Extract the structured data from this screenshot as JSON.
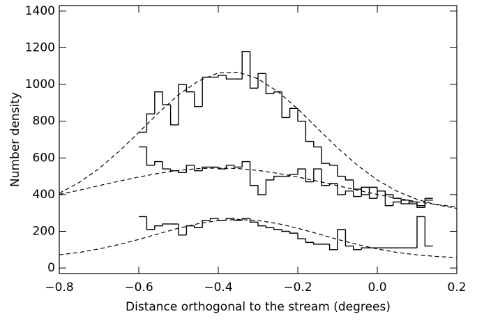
{
  "chart_data": {
    "type": "histogram",
    "xlabel": "Distance orthogonal to the stream (degrees)",
    "ylabel": "Number density",
    "xlim": [
      -0.8,
      0.2
    ],
    "ylim": [
      -30,
      1430
    ],
    "xticks": [
      {
        "value": -0.8,
        "label": "−0.8"
      },
      {
        "value": -0.6,
        "label": "−0.6"
      },
      {
        "value": -0.4,
        "label": "−0.4"
      },
      {
        "value": -0.2,
        "label": "−0.2"
      },
      {
        "value": 0,
        "label": "0.0"
      },
      0.2
    ],
    "yticks": [
      0,
      200,
      400,
      600,
      800,
      1000,
      1200,
      1400
    ],
    "color": "#000000",
    "bins": [
      -0.6,
      -0.58,
      -0.56,
      -0.54,
      -0.52,
      -0.5,
      -0.48,
      -0.46,
      -0.44,
      -0.42,
      -0.4,
      -0.38,
      -0.36,
      -0.34,
      -0.32,
      -0.3,
      -0.28,
      -0.26,
      -0.24,
      -0.22,
      -0.2,
      -0.18,
      -0.16,
      -0.14,
      -0.12,
      -0.1,
      -0.08,
      -0.06,
      -0.04,
      -0.02,
      0,
      0.02,
      0.04,
      0.06,
      0.08,
      0.1,
      0.12,
      0.14
    ],
    "series": [
      {
        "values": [
          740,
          840,
          960,
          890,
          780,
          1000,
          960,
          880,
          1040,
          1040,
          1050,
          1030,
          1030,
          1180,
          980,
          1060,
          950,
          960,
          820,
          870,
          800,
          690,
          660,
          570,
          560,
          500,
          480,
          430,
          400,
          440,
          420,
          340,
          360,
          370,
          350,
          340,
          380
        ]
      },
      {
        "values": [
          660,
          560,
          580,
          540,
          530,
          520,
          560,
          530,
          550,
          550,
          540,
          560,
          550,
          580,
          450,
          400,
          480,
          500,
          500,
          510,
          540,
          470,
          540,
          450,
          460,
          400,
          420,
          390,
          440,
          380,
          420,
          400,
          380,
          350,
          360,
          330,
          370
        ]
      },
      {
        "values": [
          280,
          210,
          230,
          240,
          240,
          180,
          230,
          220,
          260,
          270,
          260,
          270,
          260,
          270,
          250,
          230,
          220,
          210,
          200,
          190,
          160,
          140,
          130,
          130,
          100,
          210,
          120,
          100,
          110,
          110,
          110,
          110,
          110,
          110,
          110,
          280,
          120
        ]
      }
    ],
    "fit_x": [
      -0.8,
      -0.75,
      -0.7,
      -0.65,
      -0.6,
      -0.55,
      -0.5,
      -0.45,
      -0.4,
      -0.35,
      -0.3,
      -0.25,
      -0.2,
      -0.15,
      -0.1,
      -0.05,
      0,
      0.05,
      0.1,
      0.15,
      0.2
    ],
    "fits": [
      {
        "values": [
          408,
          466,
          542,
          635,
          739,
          846,
          944,
          1019,
          1063,
          1067,
          1031,
          961,
          867,
          760,
          655,
          560,
          480,
          418,
          374,
          344,
          325
        ]
      },
      {
        "values": [
          401,
          424,
          449,
          473,
          496,
          516,
          532,
          542,
          545,
          542,
          532,
          516,
          496,
          473,
          449,
          424,
          401,
          380,
          361,
          346,
          333
        ]
      },
      {
        "values": [
          72,
          85,
          104,
          128,
          156,
          187,
          217,
          242,
          259,
          265,
          259,
          242,
          217,
          187,
          156,
          128,
          104,
          85,
          72,
          63,
          57
        ]
      }
    ]
  }
}
